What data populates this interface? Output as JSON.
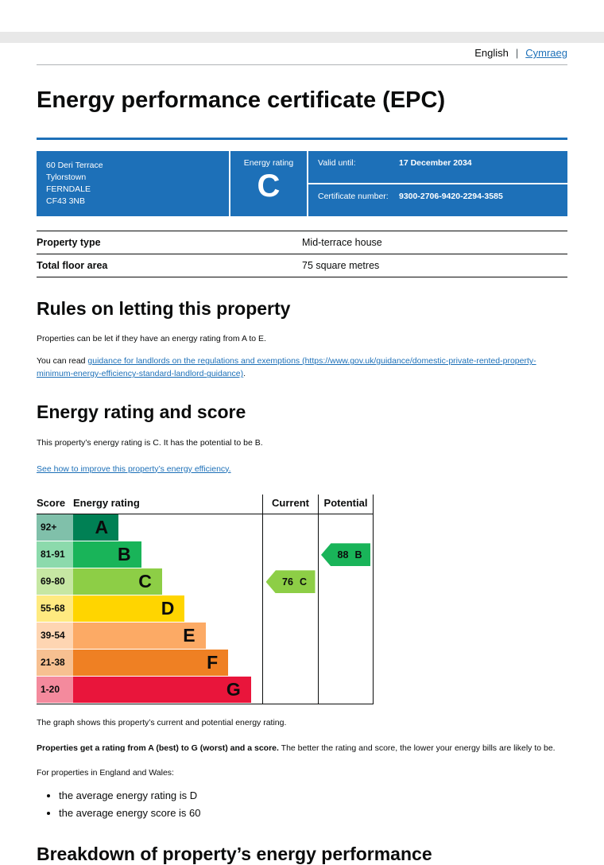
{
  "colors": {
    "govuk_blue": "#1d70b8",
    "text": "#0b0c0c",
    "top_bar_gray": "#e8e8e8"
  },
  "header": {
    "lang_current": "English",
    "lang_separator": "|",
    "lang_other": "Cymraeg",
    "title": "Energy performance certificate (EPC)"
  },
  "summary": {
    "address_lines": [
      "60 Deri Terrace",
      "Tylorstown",
      "FERNDALE",
      "CF43 3NB"
    ],
    "energy_rating_label": "Energy rating",
    "energy_rating_value": "C",
    "valid_until_label": "Valid until:",
    "valid_until_value": "17 December 2034",
    "certificate_number_label": "Certificate number:",
    "certificate_number_value": "9300-2706-9420-2294-3585"
  },
  "property": {
    "rows": [
      {
        "label": "Property type",
        "value": "Mid-terrace house"
      },
      {
        "label": "Total floor area",
        "value": "75 square metres"
      }
    ]
  },
  "letting": {
    "heading": "Rules on letting this property",
    "para1": "Properties can be let if they have an energy rating from A to E.",
    "para2_prefix": "You can read ",
    "para2_link": "guidance for landlords on the regulations and exemptions (https://www.gov.uk/guidance/domestic-private-rented-property-minimum-energy-efficiency-standard-landlord-guidance)",
    "para2_suffix": "."
  },
  "rating_section": {
    "heading": "Energy rating and score",
    "para1": "This property’s energy rating is C. It has the potential to be B.",
    "improve_link": "See how to improve this property’s energy efficiency.",
    "graph_caption": "The graph shows this property’s current and potential energy rating.",
    "explain_bold": "Properties get a rating from A (best) to G (worst) and a score.",
    "explain_rest": " The better the rating and score, the lower your energy bills are likely to be.",
    "regions_intro": "For properties in England and Wales:",
    "facts": [
      "the average energy rating is D",
      "the average energy score is 60"
    ]
  },
  "chart_data": {
    "type": "bar",
    "title": "Energy rating and score graph",
    "headers": {
      "score": "Score",
      "rating": "Energy rating",
      "current": "Current",
      "potential": "Potential"
    },
    "bands": [
      {
        "score": "92+",
        "letter": "A",
        "color": "#008054",
        "tint": "#80c0aa",
        "width_pct": 24
      },
      {
        "score": "81-91",
        "letter": "B",
        "color": "#19b459",
        "tint": "#8cdaac",
        "width_pct": 36
      },
      {
        "score": "69-80",
        "letter": "C",
        "color": "#8dce46",
        "tint": "#c6e7a3",
        "width_pct": 47
      },
      {
        "score": "55-68",
        "letter": "D",
        "color": "#ffd500",
        "tint": "#ffea80",
        "width_pct": 59
      },
      {
        "score": "39-54",
        "letter": "E",
        "color": "#fcaa65",
        "tint": "#fed5b2",
        "width_pct": 70
      },
      {
        "score": "21-38",
        "letter": "F",
        "color": "#ef8023",
        "tint": "#f7c091",
        "width_pct": 82
      },
      {
        "score": "1-20",
        "letter": "G",
        "color": "#e9153b",
        "tint": "#f48a9d",
        "width_pct": 94
      }
    ],
    "current": {
      "score": 76,
      "band": "C",
      "color": "#8dce46"
    },
    "potential": {
      "score": 88,
      "band": "B",
      "color": "#19b459"
    }
  },
  "breakdown": {
    "heading": "Breakdown of property’s energy performance"
  }
}
